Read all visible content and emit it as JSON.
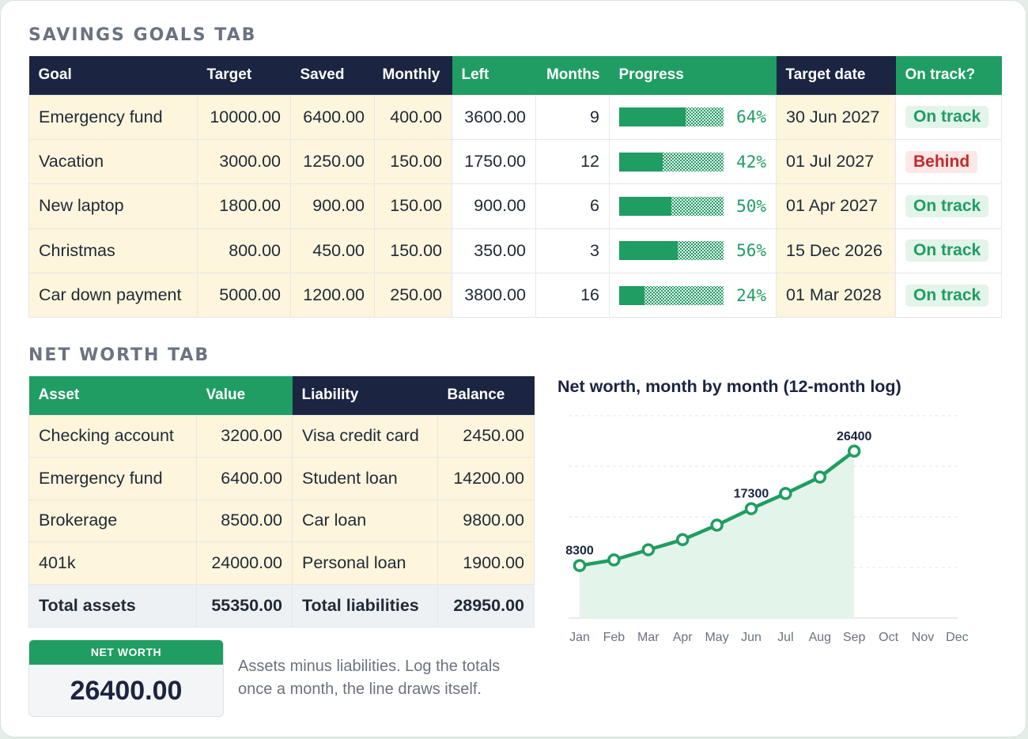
{
  "savings": {
    "title": "SAVINGS GOALS TAB",
    "headers": [
      "Goal",
      "Target",
      "Saved",
      "Monthly",
      "Left",
      "Months",
      "Progress",
      "Target date",
      "On track?"
    ],
    "rows": [
      {
        "goal": "Emergency fund",
        "target": "10000.00",
        "saved": "6400.00",
        "monthly": "400.00",
        "left": "3600.00",
        "months": "9",
        "progress": 0.64,
        "pct": "64%",
        "date": "30 Jun 2027",
        "status": "On track",
        "ok": true
      },
      {
        "goal": "Vacation",
        "target": "3000.00",
        "saved": "1250.00",
        "monthly": "150.00",
        "left": "1750.00",
        "months": "12",
        "progress": 0.42,
        "pct": "42%",
        "date": "01 Jul 2027",
        "status": "Behind",
        "ok": false
      },
      {
        "goal": "New laptop",
        "target": "1800.00",
        "saved": "900.00",
        "monthly": "150.00",
        "left": "900.00",
        "months": "6",
        "progress": 0.5,
        "pct": "50%",
        "date": "01 Apr 2027",
        "status": "On track",
        "ok": true
      },
      {
        "goal": "Christmas",
        "target": "800.00",
        "saved": "450.00",
        "monthly": "150.00",
        "left": "350.00",
        "months": "3",
        "progress": 0.56,
        "pct": "56%",
        "date": "15 Dec 2026",
        "status": "On track",
        "ok": true
      },
      {
        "goal": "Car down payment",
        "target": "5000.00",
        "saved": "1200.00",
        "monthly": "250.00",
        "left": "3800.00",
        "months": "16",
        "progress": 0.24,
        "pct": "24%",
        "date": "01 Mar 2028",
        "status": "On track",
        "ok": true
      }
    ]
  },
  "networth": {
    "title": "NET WORTH TAB",
    "headers": [
      "Asset",
      "Value",
      "Liability",
      "Balance"
    ],
    "rows": [
      {
        "asset": "Checking account",
        "value": "3200.00",
        "liability": "Visa credit card",
        "balance": "2450.00"
      },
      {
        "asset": "Emergency fund",
        "value": "6400.00",
        "liability": "Student loan",
        "balance": "14200.00"
      },
      {
        "asset": "Brokerage",
        "value": "8500.00",
        "liability": "Car loan",
        "balance": "9800.00"
      },
      {
        "asset": "401k",
        "value": "24000.00",
        "liability": "Personal loan",
        "balance": "1900.00"
      }
    ],
    "totals": {
      "assets_label": "Total assets",
      "assets": "55350.00",
      "liab_label": "Total liabilities",
      "liab": "28950.00"
    },
    "box_label": "NET WORTH",
    "box_value": "26400.00",
    "note": "Assets minus liabilities. Log the totals once a month, the line draws itself."
  },
  "colors": {
    "navy": "#1b2541",
    "green": "#1f9d62",
    "cream": "#fdf5dc",
    "behind": "#c42a2a"
  },
  "chart_data": {
    "type": "area",
    "title": "Net worth, month by month (12-month log)",
    "categories": [
      "Jan",
      "Feb",
      "Mar",
      "Apr",
      "May",
      "Jun",
      "Jul",
      "Aug",
      "Sep",
      "Oct",
      "Nov",
      "Dec"
    ],
    "series": [
      {
        "values": [
          8300,
          9200,
          10800,
          12400,
          14700,
          17300,
          19700,
          22300,
          26400,
          null,
          null,
          null
        ]
      }
    ],
    "data_labels": [
      {
        "index": 0,
        "text": "8300"
      },
      {
        "index": 5,
        "text": "17300"
      },
      {
        "index": 8,
        "text": "26400"
      }
    ],
    "ylim": [
      0,
      32000
    ],
    "grid": true
  }
}
